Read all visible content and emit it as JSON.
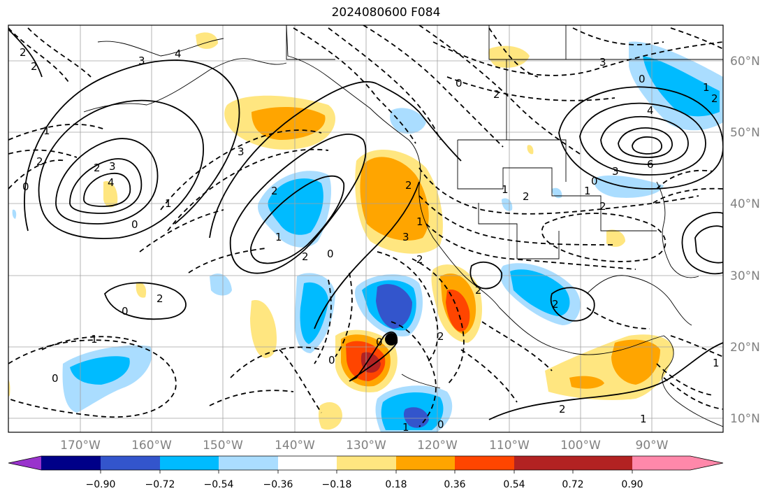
{
  "title": "2024080600 F084",
  "lat_labels": [
    "60°N",
    "50°N",
    "40°N",
    "30°N",
    "20°N",
    "10°N"
  ],
  "lon_labels": [
    "170°W",
    "160°W",
    "150°W",
    "140°W",
    "130°W",
    "120°W",
    "110°W",
    "100°W",
    "90°W"
  ],
  "colorbar": {
    "tick_labels": [
      "−0.90",
      "−0.72",
      "−0.54",
      "−0.36",
      "−0.18",
      "0.18",
      "0.36",
      "0.54",
      "0.72",
      "0.90"
    ],
    "colors": [
      "#9933cc",
      "#000088",
      "#3355cc",
      "#00bbff",
      "#aaddff",
      "#ffffff",
      "#ffe680",
      "#ffa500",
      "#ff4500",
      "#b22222",
      "#ff88aa"
    ]
  },
  "contour_labels": [
    "2",
    "3",
    "4",
    "2",
    "1",
    "2",
    "3",
    "4",
    "0",
    "1",
    "2",
    "3",
    "2",
    "1",
    "2",
    "0",
    "3",
    "2",
    "1",
    "2",
    "0",
    "2",
    "1",
    "2",
    "3",
    "0",
    "0",
    "1",
    "2",
    "2",
    "0",
    "2",
    "0",
    "1",
    "0",
    "1",
    "2",
    "2",
    "3",
    "4",
    "6",
    "0",
    "1",
    "2",
    "1",
    "0",
    "0",
    "1",
    "2"
  ],
  "marker": {
    "name": "storm-center",
    "color": "#000000"
  }
}
